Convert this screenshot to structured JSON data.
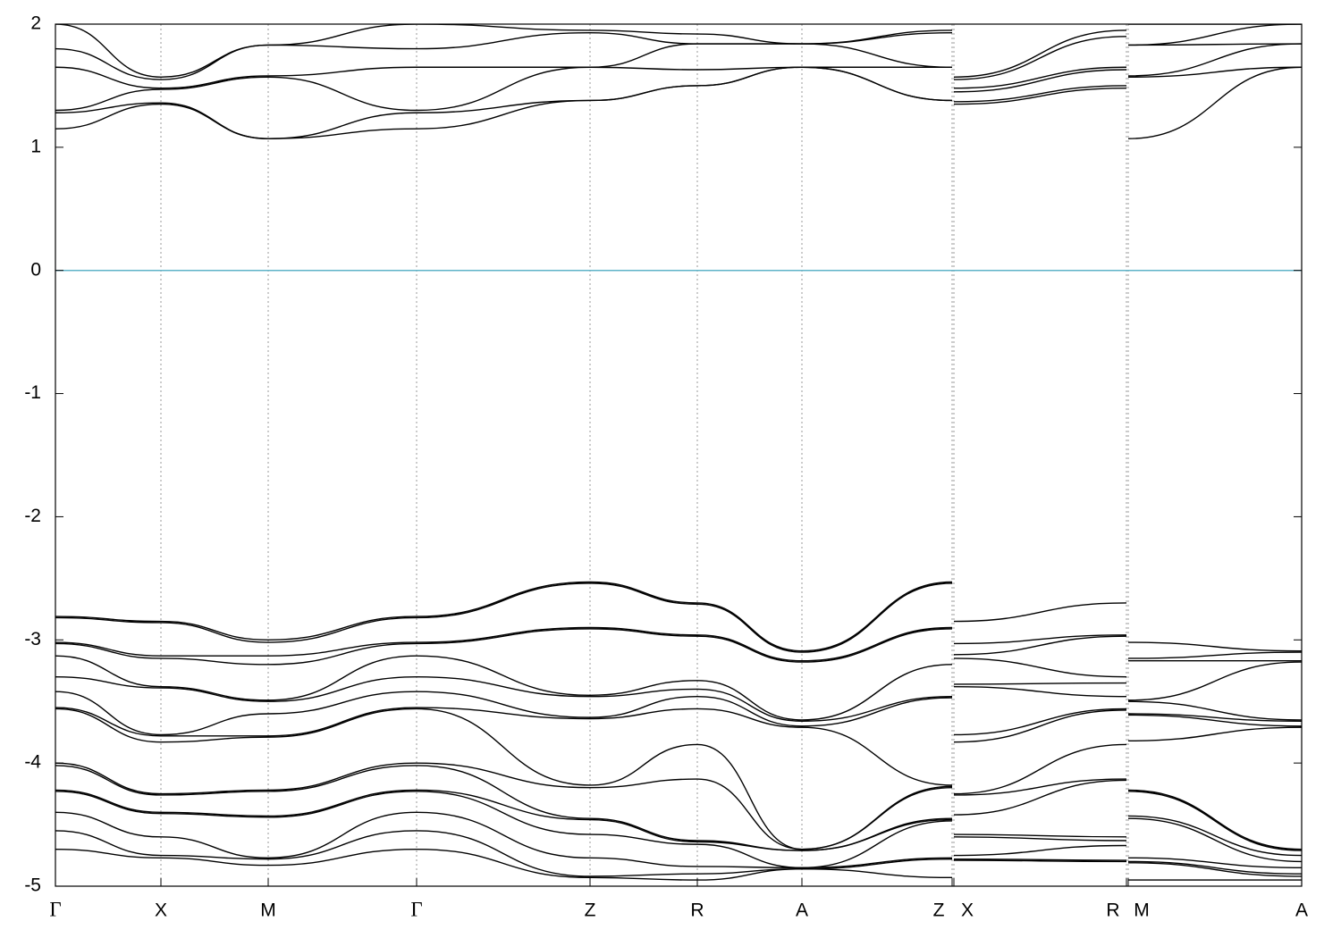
{
  "chart_data": {
    "type": "line",
    "x": [
      0,
      118,
      238,
      404,
      598,
      718,
      835,
      1003,
      1004,
      1005,
      1198,
      1199,
      1200,
      1394
    ],
    "xlim": [
      0,
      1394
    ],
    "xticks": [
      {
        "value": 0,
        "label": "Γ"
      },
      {
        "value": 118,
        "label": "X"
      },
      {
        "value": 238,
        "label": "M"
      },
      {
        "value": 404,
        "label": "Γ"
      },
      {
        "value": 598,
        "label": "Z"
      },
      {
        "value": 718,
        "label": "R"
      },
      {
        "value": 835,
        "label": "A"
      },
      {
        "value": 1003,
        "label": "Z"
      },
      {
        "value": 1005,
        "label": "X"
      },
      {
        "value": 1198,
        "label": "R"
      },
      {
        "value": 1200,
        "label": "M"
      },
      {
        "value": 1394,
        "label": "A"
      }
    ],
    "ylim": [
      -5,
      2
    ],
    "yticks": [
      -5,
      -4,
      -3,
      -2,
      -1,
      0,
      1,
      2
    ],
    "xgrid": true,
    "reference_line": 0,
    "reference_color": "#5fb3c8",
    "series": [
      {
        "color": "#000000",
        "values": [
          -2.81,
          -2.85,
          -3.0,
          -2.81,
          -2.53,
          -2.7,
          -3.09,
          -2.53,
          null,
          -2.85,
          -2.7,
          null,
          -3.02,
          -3.09
        ]
      },
      {
        "color": "#000000",
        "values": [
          -2.82,
          -2.86,
          -3.02,
          -2.82,
          -2.54,
          -2.71,
          -3.1,
          -2.54,
          null,
          -3.03,
          -2.96,
          null,
          -3.15,
          -3.1
        ]
      },
      {
        "color": "#000000",
        "values": [
          -3.02,
          -3.13,
          -3.13,
          -3.02,
          -2.9,
          -2.96,
          -3.17,
          -2.9,
          null,
          -3.12,
          -2.97,
          null,
          -3.17,
          -3.17
        ]
      },
      {
        "color": "#000000",
        "values": [
          -3.03,
          -3.15,
          -3.2,
          -3.03,
          -2.91,
          -2.97,
          -3.18,
          -2.91,
          null,
          -3.15,
          -3.3,
          null,
          -3.49,
          -3.18
        ]
      },
      {
        "color": "#000000",
        "values": [
          -3.13,
          -3.38,
          -3.49,
          -3.13,
          -3.45,
          -3.33,
          -3.65,
          -3.2,
          null,
          -3.36,
          -3.35,
          null,
          -3.5,
          -3.65
        ]
      },
      {
        "color": "#000000",
        "values": [
          -3.3,
          -3.39,
          -3.5,
          -3.3,
          -3.46,
          -3.4,
          -3.66,
          -3.46,
          null,
          -3.38,
          -3.46,
          null,
          -3.6,
          -3.66
        ]
      },
      {
        "color": "#000000",
        "values": [
          -3.42,
          -3.77,
          -3.6,
          -3.42,
          -3.63,
          -3.46,
          -3.7,
          -3.47,
          null,
          -3.77,
          -3.56,
          null,
          -3.61,
          -3.7
        ]
      },
      {
        "color": "#000000",
        "values": [
          -3.55,
          -3.78,
          -3.78,
          -3.55,
          -3.64,
          -3.56,
          -3.71,
          -4.18,
          null,
          -3.83,
          -3.57,
          null,
          -3.82,
          -3.71
        ]
      },
      {
        "color": "#000000",
        "values": [
          -3.56,
          -3.83,
          -3.79,
          -3.56,
          -4.18,
          -3.85,
          -4.7,
          -4.19,
          null,
          -4.25,
          -3.85,
          null,
          -4.22,
          -4.7
        ]
      },
      {
        "color": "#000000",
        "values": [
          -4.0,
          -4.25,
          -4.22,
          -4.0,
          -4.2,
          -4.13,
          -4.7,
          -4.2,
          null,
          -4.26,
          -4.13,
          null,
          -4.23,
          -4.71
        ]
      },
      {
        "color": "#000000",
        "values": [
          -4.02,
          -4.26,
          -4.23,
          -4.02,
          -4.45,
          -4.63,
          -4.71,
          -4.45,
          null,
          -4.42,
          -4.14,
          null,
          -4.43,
          -4.75
        ]
      },
      {
        "color": "#000000",
        "values": [
          -4.22,
          -4.4,
          -4.43,
          -4.22,
          -4.46,
          -4.64,
          -4.71,
          -4.46,
          null,
          -4.58,
          -4.6,
          null,
          -4.45,
          -4.8
        ]
      },
      {
        "color": "#000000",
        "values": [
          -4.23,
          -4.41,
          -4.44,
          -4.23,
          -4.58,
          -4.66,
          -4.85,
          -4.47,
          null,
          -4.6,
          -4.63,
          null,
          -4.77,
          -4.85
        ]
      },
      {
        "color": "#000000",
        "values": [
          -4.4,
          -4.6,
          -4.77,
          -4.4,
          -4.77,
          -4.84,
          -4.85,
          -4.77,
          null,
          -4.75,
          -4.67,
          null,
          -4.8,
          -4.9
        ]
      },
      {
        "color": "#000000",
        "values": [
          -4.55,
          -4.75,
          -4.78,
          -4.55,
          -4.92,
          -4.9,
          -4.86,
          -4.78,
          null,
          -4.78,
          -4.79,
          null,
          -4.81,
          -4.92
        ]
      },
      {
        "color": "#000000",
        "values": [
          -4.7,
          -4.77,
          -4.83,
          -4.7,
          -4.93,
          -4.95,
          -4.86,
          -4.93,
          null,
          -4.79,
          -4.8,
          null,
          -4.95,
          -4.95
        ]
      },
      {
        "color": "#000000",
        "values": [
          1.15,
          1.35,
          1.07,
          1.15,
          1.38,
          1.5,
          1.65,
          1.38,
          null,
          1.35,
          1.48,
          null,
          1.07,
          1.65
        ]
      },
      {
        "color": "#000000",
        "values": [
          1.28,
          1.36,
          1.07,
          1.28,
          1.38,
          1.5,
          1.65,
          1.38,
          null,
          1.37,
          1.5,
          null,
          1.57,
          1.65
        ]
      },
      {
        "color": "#000000",
        "values": [
          1.3,
          1.47,
          1.57,
          1.3,
          1.65,
          1.63,
          1.65,
          1.65,
          null,
          1.45,
          1.63,
          null,
          1.58,
          1.84
        ]
      },
      {
        "color": "#000000",
        "values": [
          1.65,
          1.48,
          1.58,
          1.65,
          1.65,
          1.84,
          1.84,
          1.65,
          null,
          1.48,
          1.65,
          null,
          1.83,
          1.84
        ]
      },
      {
        "color": "#000000",
        "values": [
          1.8,
          1.55,
          1.83,
          1.8,
          1.93,
          1.84,
          1.84,
          1.93,
          null,
          1.55,
          1.9,
          null,
          1.83,
          2.0
        ]
      },
      {
        "color": "#000000",
        "values": [
          2.0,
          1.57,
          1.83,
          2.0,
          1.95,
          1.92,
          1.84,
          1.95,
          null,
          1.57,
          1.95,
          null,
          2.0,
          2.0
        ]
      }
    ]
  }
}
